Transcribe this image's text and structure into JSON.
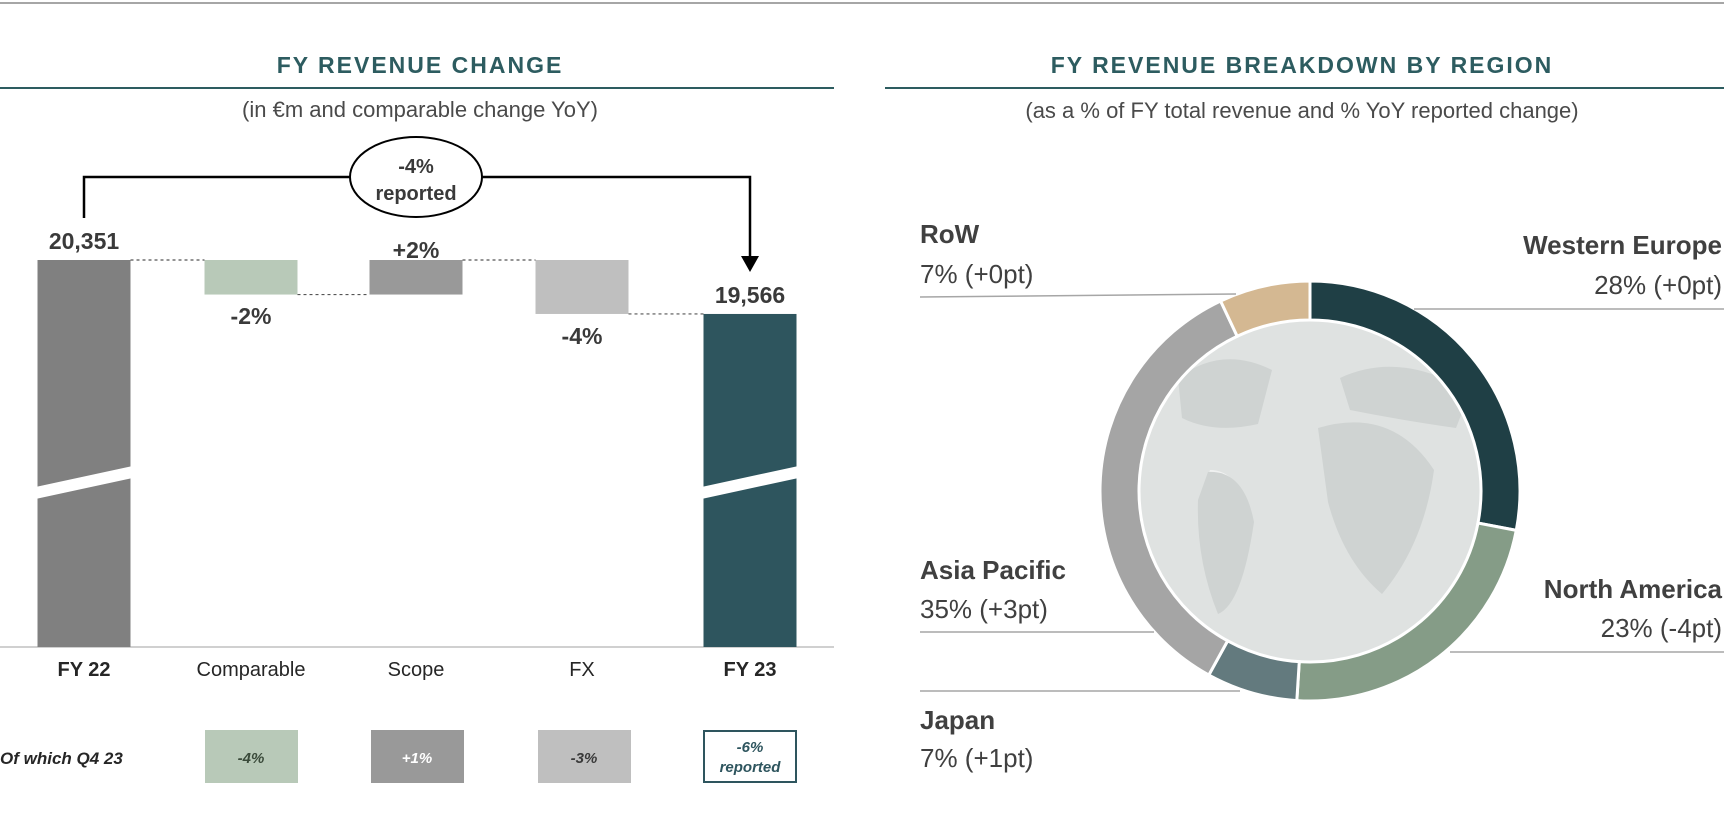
{
  "chart_data": [
    {
      "type": "bar",
      "title": "FY REVENUE CHANGE",
      "subtitle": "(in €m and comparable change YoY)",
      "categories": [
        "FY 22",
        "Comparable",
        "Scope",
        "FX",
        "FY 23"
      ],
      "values": [
        20351,
        -2,
        2,
        -4,
        19566
      ],
      "labels": [
        "20,351",
        "-2%",
        "+2%",
        "-4%",
        "19,566"
      ],
      "bracket_label": [
        "-4%",
        "reported"
      ],
      "q4_row": {
        "label": "Of which Q4 23",
        "values": [
          "-4%",
          "+1%",
          "-3%"
        ],
        "final": [
          "-6%",
          "reported"
        ]
      },
      "colors": [
        "#808080",
        "#b8c9b8",
        "#999999",
        "#bfbfbf",
        "#2e555e"
      ]
    },
    {
      "type": "pie",
      "title": "FY REVENUE BREAKDOWN BY REGION",
      "subtitle": "(as a % of FY total revenue and % YoY reported change)",
      "slices": [
        {
          "name": "Western Europe",
          "value": 28,
          "change": "28% (+0pt)",
          "color": "#1f3f45"
        },
        {
          "name": "North America",
          "value": 23,
          "change": "23% (-4pt)",
          "color": "#859c87"
        },
        {
          "name": "Japan",
          "value": 7,
          "change": "7% (+1pt)",
          "color": "#637a7e"
        },
        {
          "name": "Asia Pacific",
          "value": 35,
          "change": "35% (+3pt)",
          "color": "#a5a5a5"
        },
        {
          "name": "RoW",
          "value": 7,
          "change": "7% (+0pt)",
          "color": "#d4b892"
        }
      ]
    }
  ]
}
